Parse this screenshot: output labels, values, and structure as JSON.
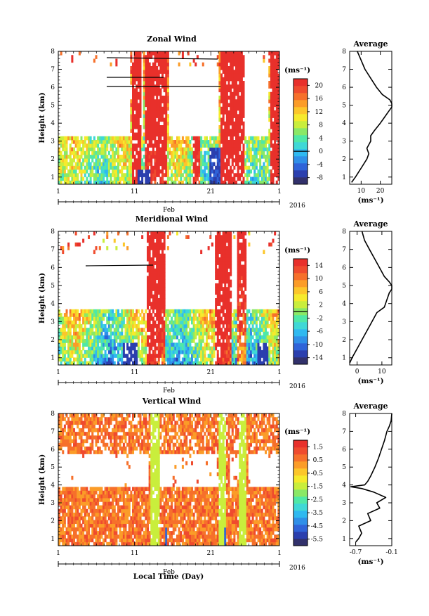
{
  "figure": {
    "x_axis_label": "Local Time (Day)",
    "year_label": "2016",
    "month_label": "Feb",
    "x_tick_labels": [
      "1",
      "11",
      "21",
      "1"
    ],
    "height_axis_label": "Height (km)",
    "height_tick_labels": [
      "1",
      "2",
      "3",
      "4",
      "5",
      "6",
      "7",
      "8"
    ],
    "unit_label": "(ms⁻¹)",
    "colors": {
      "colormap": [
        "#32316b",
        "#2b3fae",
        "#2f63d8",
        "#2f8fe8",
        "#2fb9f0",
        "#3fd8d6",
        "#4fe8a6",
        "#8ae866",
        "#c9ee3c",
        "#f6ea2c",
        "#fcc62a",
        "#fb9c28",
        "#f6702b",
        "#ef4b2e",
        "#e8302b"
      ],
      "missing_data": "#ffffff"
    }
  },
  "chart_data": [
    {
      "type": "heatmap",
      "title": "Zonal Wind",
      "xlabel": "",
      "ylabel": "Height (km)",
      "x_range": [
        "2016-02-01",
        "2016-03-01"
      ],
      "ylim": [
        0.6,
        8.0
      ],
      "colorbar": {
        "unit": "(ms⁻¹)",
        "ticks": [
          20,
          16,
          12,
          8,
          4,
          0,
          -4,
          -8
        ],
        "range": [
          -10,
          22
        ],
        "zero_line": true
      },
      "average_profile": {
        "title": "Average",
        "xlabel": "(ms⁻¹)",
        "xlim": [
          4,
          26
        ],
        "xticks": [
          10,
          20
        ],
        "height_km": [
          0.7,
          1.0,
          1.5,
          2.0,
          2.3,
          2.6,
          3.0,
          3.3,
          3.6,
          4.0,
          4.3,
          4.6,
          4.9,
          5.1,
          5.3,
          5.6,
          6.0,
          6.5,
          7.0,
          7.5,
          8.0
        ],
        "value": [
          5,
          7,
          10,
          13,
          14,
          13,
          15,
          15,
          17,
          20,
          22,
          24,
          26,
          26,
          25,
          21,
          18,
          15,
          12,
          10,
          8
        ]
      }
    },
    {
      "type": "heatmap",
      "title": "Meridional Wind",
      "xlabel": "",
      "ylabel": "Height (km)",
      "x_range": [
        "2016-02-01",
        "2016-03-01"
      ],
      "ylim": [
        0.6,
        8.0
      ],
      "colorbar": {
        "unit": "(ms⁻¹)",
        "ticks": [
          14,
          10,
          6,
          2,
          -2,
          -6,
          -10,
          -14
        ],
        "range": [
          -16,
          16
        ],
        "zero_line": true
      },
      "average_profile": {
        "title": "Average",
        "xlabel": "(ms⁻¹)",
        "xlim": [
          -3,
          14
        ],
        "xticks": [
          0,
          10
        ],
        "height_km": [
          0.7,
          1.0,
          1.5,
          2.0,
          2.5,
          3.0,
          3.5,
          3.8,
          4.2,
          4.6,
          4.8,
          5.0,
          5.2,
          5.5,
          6.0,
          6.5,
          7.0,
          7.5,
          8.0
        ],
        "value": [
          -3,
          -2,
          0,
          2,
          4,
          6,
          8,
          11,
          12,
          13,
          14,
          14,
          13,
          11,
          9,
          7,
          5,
          3,
          2
        ]
      }
    },
    {
      "type": "heatmap",
      "title": "Vertical Wind",
      "xlabel": "Local Time (Day)",
      "ylabel": "Height (km)",
      "x_range": [
        "2016-02-01",
        "2016-03-01"
      ],
      "ylim": [
        0.6,
        8.0
      ],
      "colorbar": {
        "unit": "(ms⁻¹)",
        "ticks": [
          1.5,
          0.5,
          -0.5,
          -1.5,
          -2.5,
          -3.5,
          -4.5,
          -5.5
        ],
        "range": [
          -6,
          2
        ]
      },
      "average_profile": {
        "title": "Average",
        "xlabel": "(ms⁻¹)",
        "xlim": [
          -0.8,
          -0.1
        ],
        "xticks": [
          -0.7,
          -0.1
        ],
        "height_km": [
          0.8,
          1.0,
          1.3,
          1.7,
          2.0,
          2.4,
          2.7,
          3.0,
          3.3,
          3.6,
          3.8,
          3.9,
          4.0,
          4.2,
          4.5,
          5.0,
          5.5,
          6.0,
          6.5,
          7.0,
          7.3,
          7.6,
          8.0
        ],
        "value": [
          -0.7,
          -0.65,
          -0.6,
          -0.65,
          -0.45,
          -0.5,
          -0.3,
          -0.35,
          -0.2,
          -0.4,
          -0.6,
          -0.78,
          -0.55,
          -0.5,
          -0.45,
          -0.38,
          -0.32,
          -0.27,
          -0.22,
          -0.18,
          -0.14,
          -0.11,
          -0.1
        ]
      }
    }
  ]
}
